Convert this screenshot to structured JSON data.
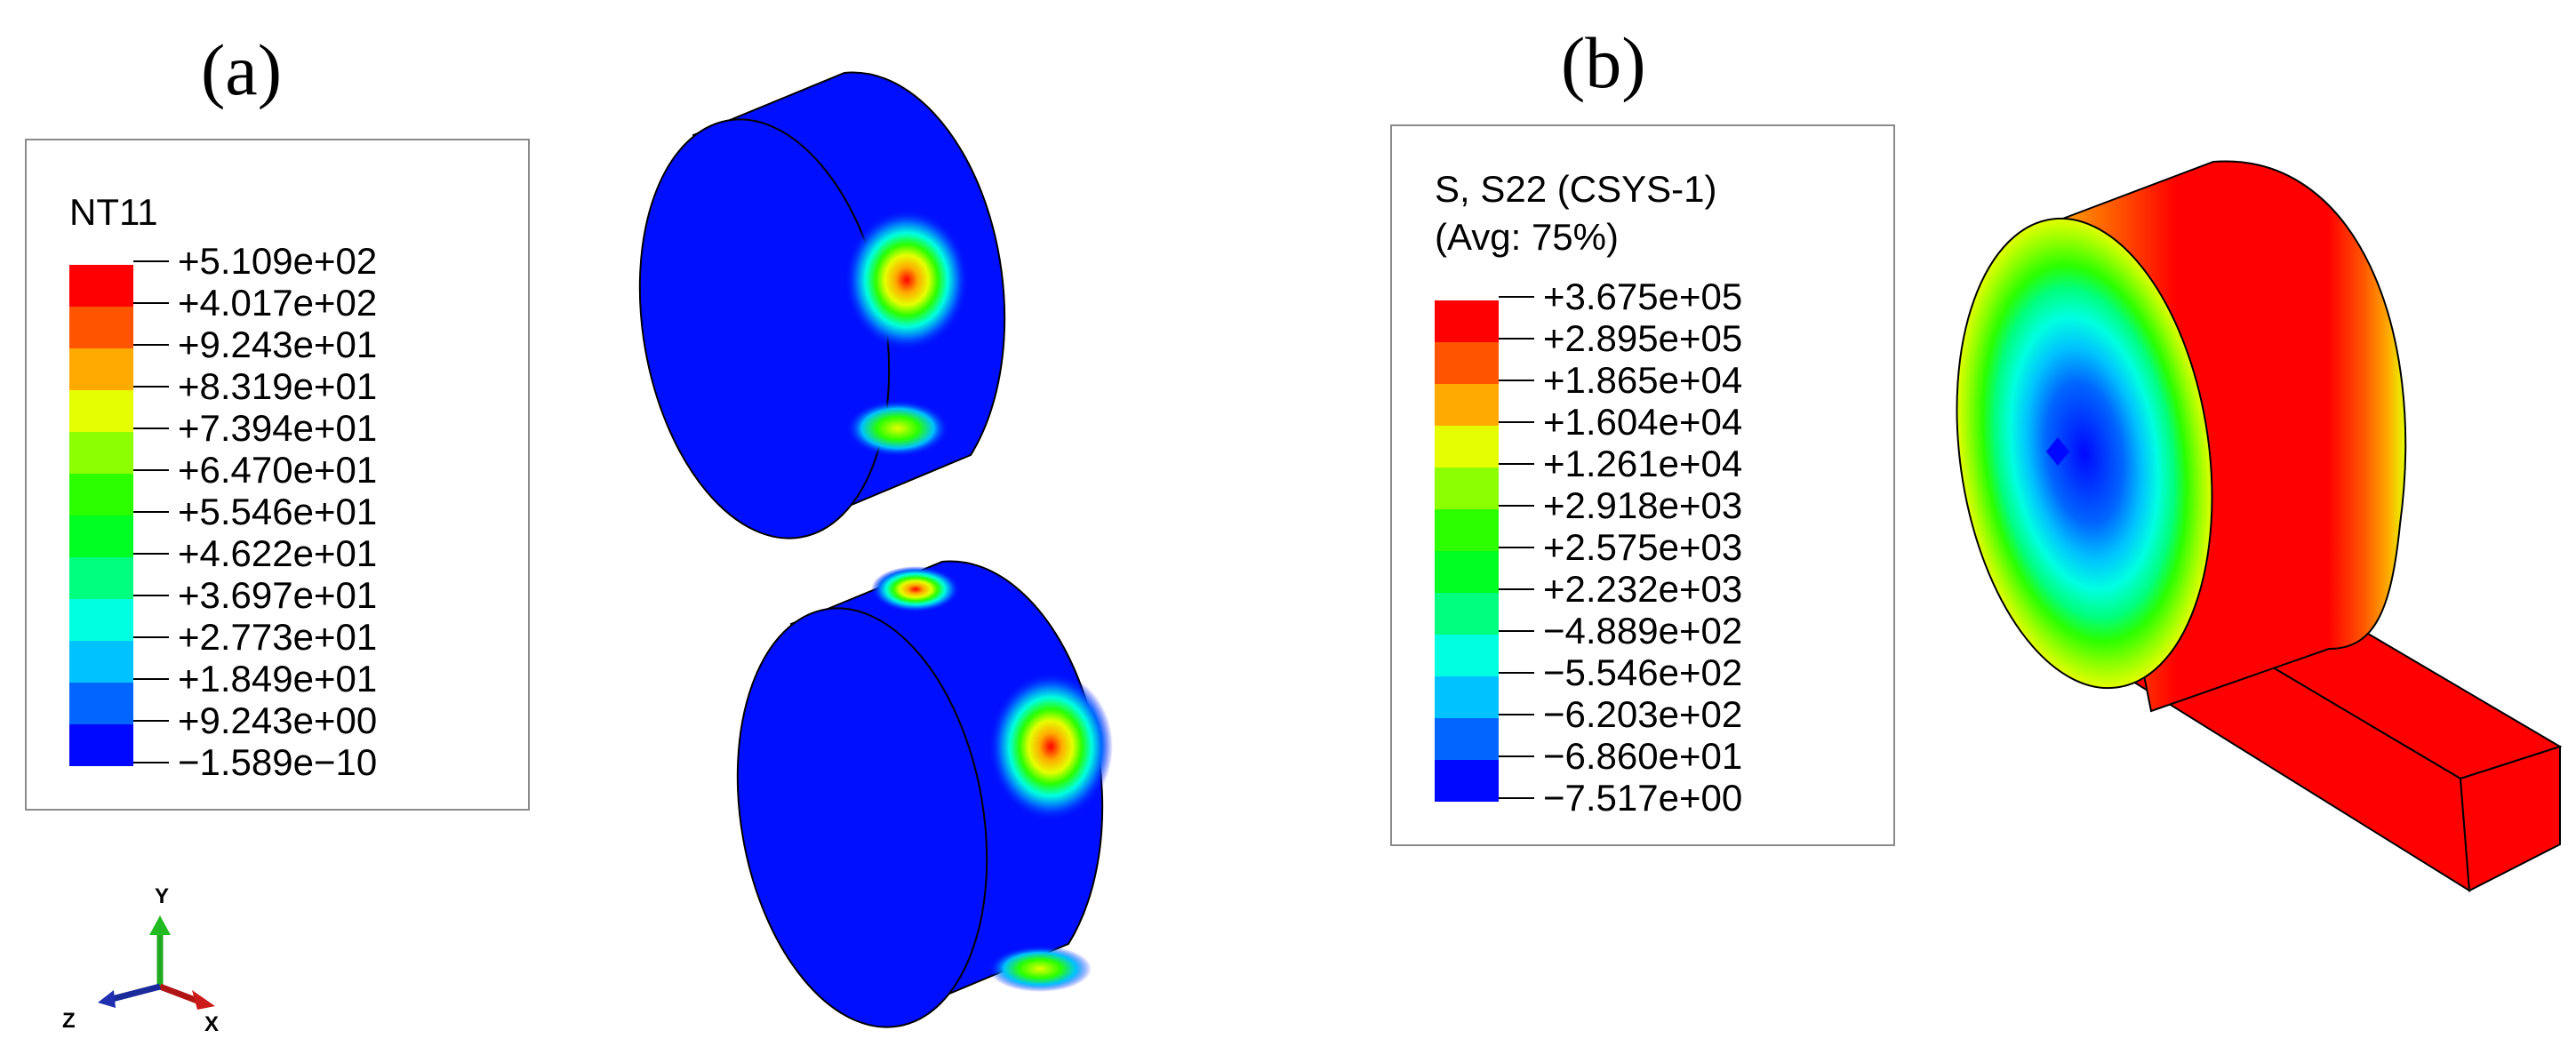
{
  "panel_a": {
    "tag": "(a)",
    "legend": {
      "title": "NT11",
      "levels": [
        {
          "label": "+5.109e+02",
          "color": "#ff0000"
        },
        {
          "label": "+4.017e+02",
          "color": "#ff5500"
        },
        {
          "label": "+9.243e+01",
          "color": "#ffaa00"
        },
        {
          "label": "+8.319e+01",
          "color": "#e5ff00"
        },
        {
          "label": "+7.394e+01",
          "color": "#8cff00"
        },
        {
          "label": "+6.470e+01",
          "color": "#2bff00"
        },
        {
          "label": "+5.546e+01",
          "color": "#00ff22"
        },
        {
          "label": "+4.622e+01",
          "color": "#00ff7f"
        },
        {
          "label": "+3.697e+01",
          "color": "#00ffe0"
        },
        {
          "label": "+2.773e+01",
          "color": "#00c2ff"
        },
        {
          "label": "+1.849e+01",
          "color": "#0066ff"
        },
        {
          "label": "+9.243e+00",
          "color": "#0008ff"
        },
        {
          "label": "−1.589e−10",
          "color": ""
        }
      ]
    },
    "triad": {
      "x_label": "X",
      "y_label": "Y",
      "z_label": "Z"
    }
  },
  "panel_b": {
    "tag": "(b)",
    "legend": {
      "title": "S, S22 (CSYS-1)",
      "subtitle": "(Avg: 75%)",
      "levels": [
        {
          "label": "+3.675e+05",
          "color": "#ff0000"
        },
        {
          "label": "+2.895e+05",
          "color": "#ff5500"
        },
        {
          "label": "+1.865e+04",
          "color": "#ffaa00"
        },
        {
          "label": "+1.604e+04",
          "color": "#e5ff00"
        },
        {
          "label": "+1.261e+04",
          "color": "#8cff00"
        },
        {
          "label": "+2.918e+03",
          "color": "#2bff00"
        },
        {
          "label": "+2.575e+03",
          "color": "#00ff22"
        },
        {
          "label": "+2.232e+03",
          "color": "#00ff7f"
        },
        {
          "label": "−4.889e+02",
          "color": "#00ffe0"
        },
        {
          "label": "−5.546e+02",
          "color": "#00c2ff"
        },
        {
          "label": "−6.203e+02",
          "color": "#0066ff"
        },
        {
          "label": "−6.860e+01",
          "color": "#0008ff"
        },
        {
          "label": "−7.517e+00",
          "color": ""
        }
      ]
    }
  }
}
